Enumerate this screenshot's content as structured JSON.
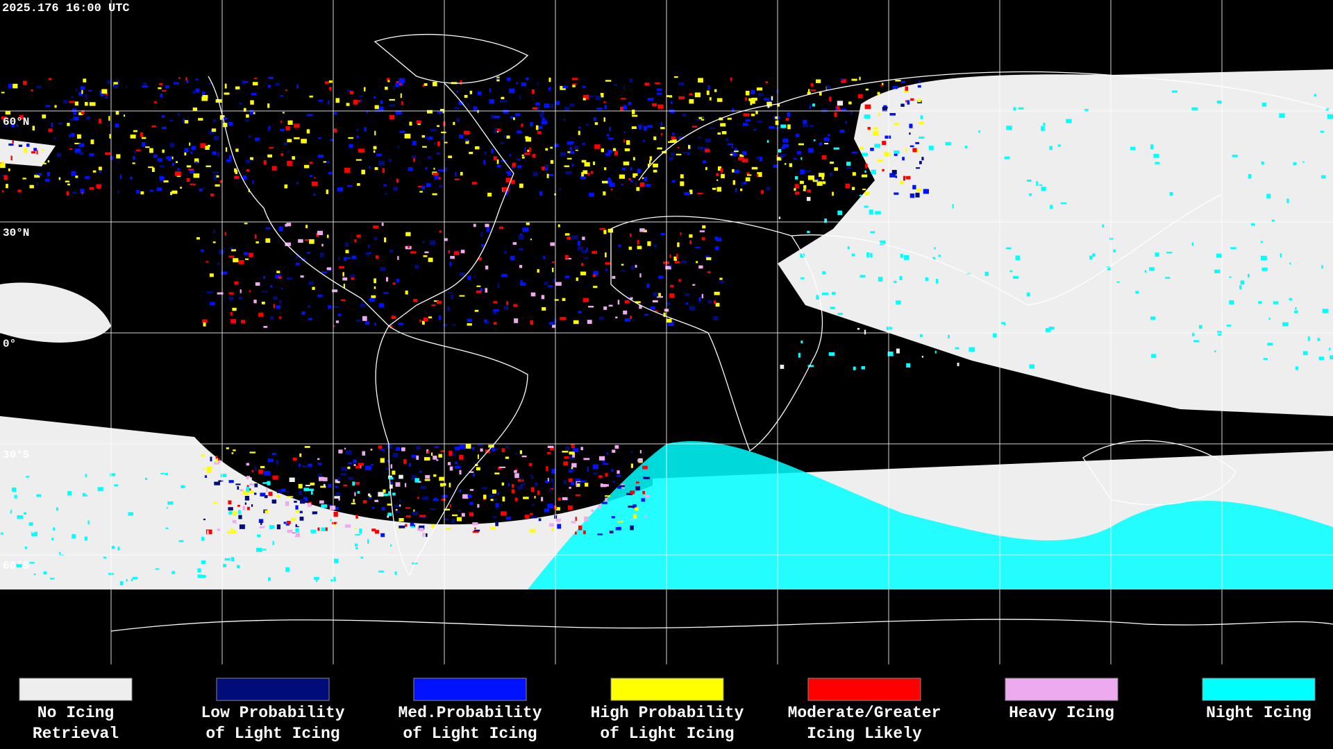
{
  "timestamp": "2025.176 16:00 UTC",
  "latitude_labels": [
    "60°N",
    "30°N",
    "0°",
    "30°S",
    "60°S"
  ],
  "legend": [
    {
      "lines": [
        "No Icing",
        "Retrieval"
      ],
      "color": "#eeeeee"
    },
    {
      "lines": [
        "Low Probability",
        "of Light Icing"
      ],
      "color": "#000c7a"
    },
    {
      "lines": [
        "Med.Probability",
        "of Light Icing"
      ],
      "color": "#0012ff"
    },
    {
      "lines": [
        "High Probability",
        "of Light Icing"
      ],
      "color": "#ffff00"
    },
    {
      "lines": [
        "Moderate/Greater",
        "Icing Likely"
      ],
      "color": "#ff0000"
    },
    {
      "lines": [
        "Heavy Icing"
      ],
      "color": "#eeaaee"
    },
    {
      "lines": [
        "Night Icing"
      ],
      "color": "#00ffff"
    }
  ]
}
